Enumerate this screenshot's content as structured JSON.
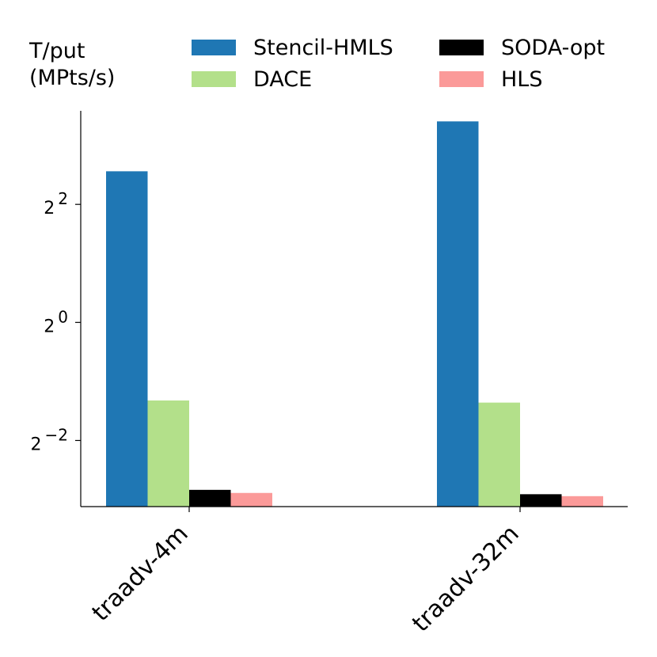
{
  "chart_data": {
    "type": "bar",
    "ylabel_lines": [
      "T/put",
      "(MPts/s)"
    ],
    "yscale": "log2",
    "y_tick_base": "2",
    "y_ticks": [
      {
        "exp": 2,
        "label": "2"
      },
      {
        "exp": 0,
        "label": "0"
      },
      {
        "exp": -2,
        "label": "−2"
      }
    ],
    "categories": [
      "traadv-4m",
      "traadv-32m"
    ],
    "series": [
      {
        "name": "Stencil-HMLS",
        "color": "#1f77b4",
        "values": [
          5.9,
          10.6
        ]
      },
      {
        "name": "DACE",
        "color": "#b3e08a",
        "values": [
          0.4,
          0.39
        ]
      },
      {
        "name": "SODA-opt",
        "color": "#000000",
        "values": [
          0.14,
          0.133
        ]
      },
      {
        "name": "HLS",
        "color": "#fb9a99",
        "values": [
          0.135,
          0.13
        ]
      }
    ],
    "ylim": [
      0.115,
      12
    ],
    "legend": "top, two columns"
  }
}
